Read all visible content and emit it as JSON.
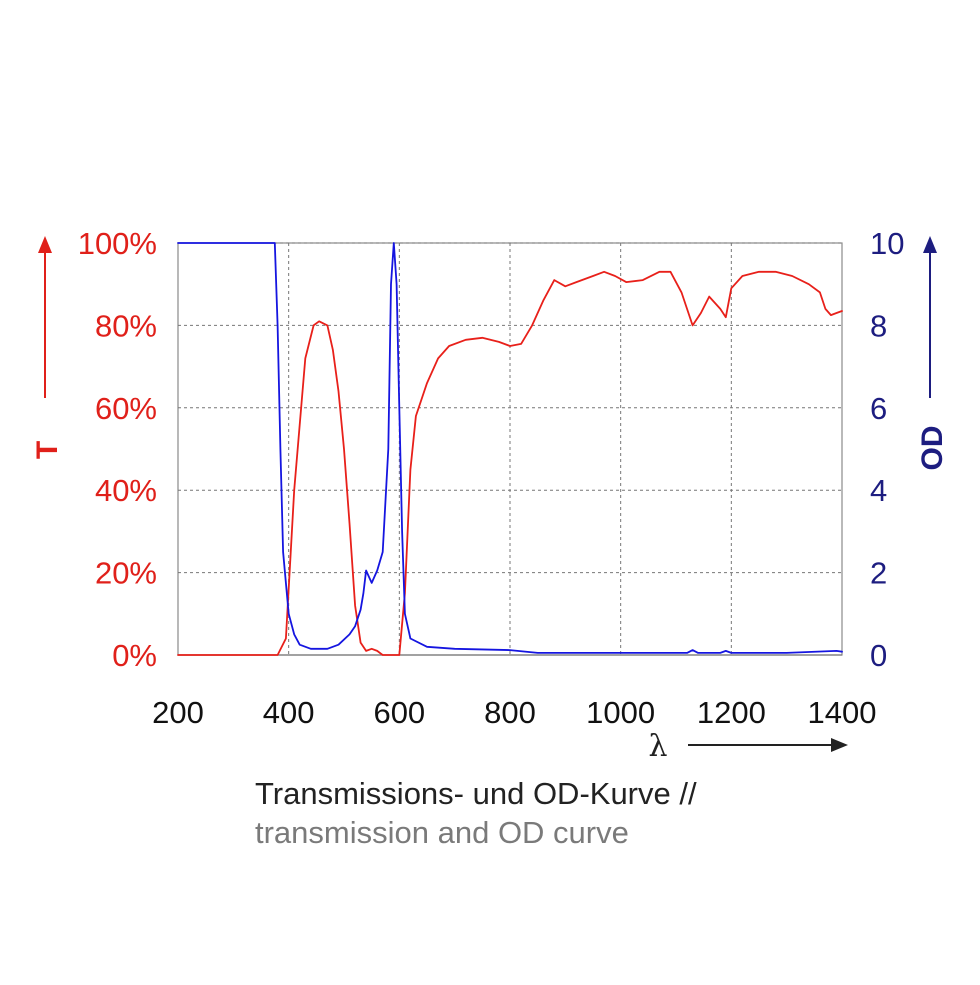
{
  "chart_data": {
    "type": "line",
    "x": {
      "label": "λ",
      "range": [
        200,
        1400
      ],
      "ticks": [
        200,
        400,
        600,
        800,
        1000,
        1200,
        1400
      ],
      "tick_labels": [
        "200",
        "400",
        "600",
        "800",
        "1000",
        "1200",
        "1400"
      ]
    },
    "y_left": {
      "label": "T",
      "range": [
        0,
        100
      ],
      "ticks": [
        0,
        20,
        40,
        60,
        80,
        100
      ],
      "tick_labels": [
        "0%",
        "20%",
        "40%",
        "60%",
        "80%",
        "100%"
      ],
      "color": "#e0201a"
    },
    "y_right": {
      "label": "OD",
      "range": [
        0,
        10
      ],
      "ticks": [
        0,
        2,
        4,
        6,
        8,
        10
      ],
      "tick_labels": [
        "0",
        "2",
        "4",
        "6",
        "8",
        "10"
      ],
      "color": "#1d1d80"
    },
    "grid": true,
    "grid_style": "dotted",
    "series": [
      {
        "axis": "left",
        "color": "#e8201a",
        "points": [
          [
            200,
            0
          ],
          [
            380,
            0
          ],
          [
            395,
            4
          ],
          [
            410,
            40
          ],
          [
            430,
            72
          ],
          [
            445,
            80
          ],
          [
            455,
            81
          ],
          [
            470,
            80
          ],
          [
            480,
            74
          ],
          [
            490,
            64
          ],
          [
            500,
            50
          ],
          [
            510,
            32
          ],
          [
            520,
            12
          ],
          [
            530,
            3
          ],
          [
            540,
            1
          ],
          [
            550,
            1.5
          ],
          [
            560,
            1
          ],
          [
            570,
            0
          ],
          [
            590,
            0
          ],
          [
            600,
            0
          ],
          [
            610,
            15
          ],
          [
            620,
            45
          ],
          [
            630,
            58
          ],
          [
            650,
            66
          ],
          [
            670,
            72
          ],
          [
            690,
            75
          ],
          [
            720,
            76.5
          ],
          [
            750,
            77
          ],
          [
            780,
            76
          ],
          [
            800,
            75
          ],
          [
            820,
            75.5
          ],
          [
            840,
            80
          ],
          [
            860,
            86
          ],
          [
            880,
            91
          ],
          [
            900,
            89.5
          ],
          [
            920,
            90.5
          ],
          [
            950,
            92
          ],
          [
            970,
            93
          ],
          [
            990,
            92
          ],
          [
            1010,
            90.5
          ],
          [
            1040,
            91
          ],
          [
            1070,
            93
          ],
          [
            1090,
            93
          ],
          [
            1110,
            88
          ],
          [
            1130,
            80
          ],
          [
            1145,
            83
          ],
          [
            1160,
            87
          ],
          [
            1180,
            84
          ],
          [
            1190,
            82
          ],
          [
            1200,
            89
          ],
          [
            1220,
            92
          ],
          [
            1250,
            93
          ],
          [
            1280,
            93
          ],
          [
            1310,
            92
          ],
          [
            1340,
            90
          ],
          [
            1360,
            88
          ],
          [
            1370,
            84
          ],
          [
            1380,
            82.5
          ],
          [
            1390,
            83
          ],
          [
            1400,
            83.5
          ]
        ]
      },
      {
        "axis": "right",
        "color": "#1515e0",
        "points": [
          [
            200,
            10
          ],
          [
            375,
            10
          ],
          [
            380,
            8
          ],
          [
            385,
            5
          ],
          [
            390,
            2.5
          ],
          [
            400,
            1
          ],
          [
            410,
            0.5
          ],
          [
            420,
            0.25
          ],
          [
            440,
            0.15
          ],
          [
            470,
            0.15
          ],
          [
            490,
            0.25
          ],
          [
            510,
            0.5
          ],
          [
            520,
            0.7
          ],
          [
            530,
            1.1
          ],
          [
            535,
            1.5
          ],
          [
            540,
            2.05
          ],
          [
            545,
            1.9
          ],
          [
            550,
            1.75
          ],
          [
            560,
            2.05
          ],
          [
            570,
            2.5
          ],
          [
            580,
            5
          ],
          [
            585,
            9
          ],
          [
            590,
            10
          ],
          [
            595,
            9
          ],
          [
            600,
            6
          ],
          [
            605,
            3
          ],
          [
            610,
            1
          ],
          [
            620,
            0.4
          ],
          [
            650,
            0.2
          ],
          [
            700,
            0.15
          ],
          [
            800,
            0.12
          ],
          [
            850,
            0.05
          ],
          [
            1000,
            0.05
          ],
          [
            1120,
            0.05
          ],
          [
            1130,
            0.12
          ],
          [
            1140,
            0.05
          ],
          [
            1180,
            0.05
          ],
          [
            1190,
            0.1
          ],
          [
            1200,
            0.05
          ],
          [
            1300,
            0.05
          ],
          [
            1390,
            0.1
          ],
          [
            1400,
            0.08
          ]
        ]
      }
    ]
  },
  "caption": {
    "line1": "Transmissions- und OD-Kurve //",
    "line2": "transmission and OD curve"
  }
}
